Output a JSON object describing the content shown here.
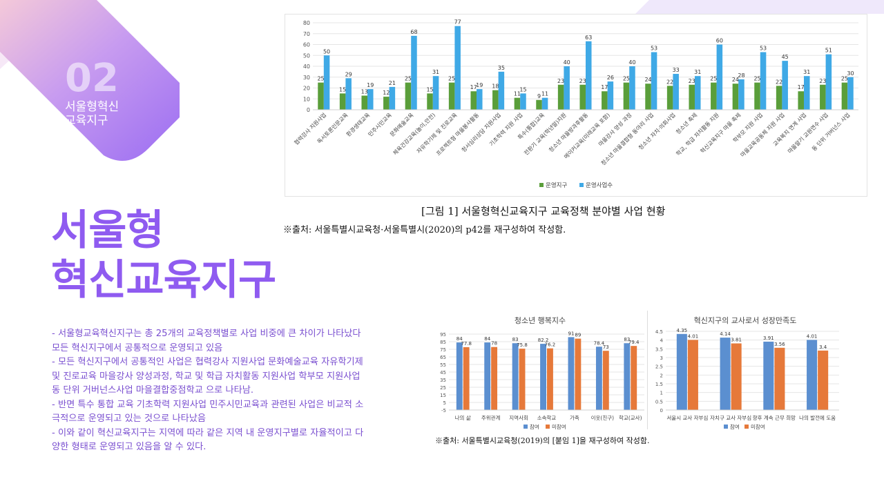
{
  "badge": {
    "number": "02",
    "line1": "서울형혁신",
    "line2": "교육지구"
  },
  "title": {
    "line1": "서울형",
    "line2": "혁신교육지구"
  },
  "body": [
    "- 서울형교육혁신지구는 총 25개의 교육정책별로 사업 비중에 큰 차이가 나타났다",
    "모든 혁신지구에서 공통적으로 운영되고 있음",
    "- 모든 혁신지구에서 공통적인 사업은 협력강사 지원사업 문화예술교육 자유학기제",
    "및 진로교육 마을강사 양성과정, 학교 및 학급 자치활동 지원사업 학부모 지원사업",
    "동 단위 거버넌스사업 마을결합중점학교 으로 나타남.",
    "- 반면 특수 통합 교육 기초학력 지원사업 민주시민교육과 관련된 사업은 비교적 소",
    "극적으로 운영되고 있는 것으로 나타났음",
    "- 이와 같이 혁신교육지구는 지역에 따라 같은 지역 내 운영지구별로 자율적이고 다",
    "양한 형태로 운영되고 있음을 알 수 있다."
  ],
  "caption_top": {
    "figure": "[그림 1] 서울형혁신교육지구 교육정책 분야별 사업 현황",
    "source": "※출처: 서울특별시교육청·서울특별시(2020)의 p42를 재구성하여 작성함."
  },
  "caption_bottom": {
    "source": "※출처: 서울특별시교육청(2019)의 [붙임 1]을 재구성하여 작성함."
  },
  "colors": {
    "green": "#5a9e3a",
    "blue": "#3fa9e6",
    "bar_blue": "#5b8fd0",
    "bar_orange": "#e6793a",
    "purple": "#8f5bf0"
  },
  "chart_data": [
    {
      "type": "bar",
      "categories": [
        "협력강사 지원사업",
        "독서토론인문교육",
        "환경생태교육",
        "민주시민교육",
        "문화예술교육",
        "체육건강교육(놀이,안전)",
        "자유학기제 및 진로교육",
        "프로젝트형 마을봉사활동",
        "청서심리상담 지원사업",
        "기초학력 지원 사업",
        "특수(통합)교육",
        "전환기 교육(학년말)지원",
        "청소년 마을방과후활동",
        "메이커교육(미래교육 포함)",
        "마을강사 양성 과정",
        "청소년 마을결합형 동아리 사업",
        "청소년 자치·의회사업",
        "청소년 축제",
        "학교, 학급 자치활동 지원",
        "혁신교육지구 마을 축제",
        "학부모 지원 사업",
        "마을교육공동체 지원 사업",
        "교육복지 연계 사업",
        "마을알기 교원연수 사업",
        "동 단위 거버넌스 사업"
      ],
      "series": [
        {
          "name": "운영지구",
          "values": [
            25,
            15,
            13,
            12,
            25,
            15,
            25,
            17,
            18,
            11,
            9,
            23,
            23,
            17,
            25,
            24,
            22,
            23,
            25,
            24,
            25,
            22,
            17,
            23,
            25
          ]
        },
        {
          "name": "운영사업수",
          "values": [
            50,
            29,
            19,
            21,
            68,
            31,
            77,
            19,
            35,
            15,
            11,
            40,
            63,
            26,
            40,
            53,
            33,
            31,
            60,
            28,
            53,
            45,
            31,
            51,
            30
          ]
        }
      ],
      "ylim": [
        0,
        80
      ],
      "yticks": [
        0,
        10,
        20,
        30,
        40,
        50,
        60,
        70,
        80
      ],
      "legend": "bottom"
    },
    {
      "type": "bar",
      "title": "청소년 행복지수",
      "categories": [
        "나의 삶",
        "주위관계",
        "지역사회",
        "소속학교",
        "가족",
        "이웃(친구)",
        "학교(교사)"
      ],
      "series": [
        {
          "name": "참여",
          "values": [
            84,
            84,
            83,
            82.2,
            91,
            78.4,
            83
          ]
        },
        {
          "name": "미참여",
          "values": [
            77.8,
            78,
            75.8,
            76.2,
            89,
            73,
            79.4
          ]
        }
      ],
      "ylim": [
        -5,
        95
      ],
      "yticks": [
        -5,
        5,
        15,
        25,
        35,
        45,
        55,
        65,
        75,
        85,
        95
      ],
      "legend": "bottom"
    },
    {
      "type": "bar",
      "title": "혁신지구의 교사로서 성장만족도",
      "categories": [
        "서울시 교사 자부심",
        "자치구 교사 자부심",
        "향후 계속 근무 희망",
        "나의 발전에 도움"
      ],
      "series": [
        {
          "name": "참여",
          "values": [
            4.35,
            4.14,
            3.91,
            4.01
          ]
        },
        {
          "name": "미참여",
          "values": [
            4.01,
            3.81,
            3.56,
            3.4
          ]
        }
      ],
      "ylim": [
        0,
        4.5
      ],
      "yticks": [
        0,
        0.5,
        1,
        1.5,
        2,
        2.5,
        3,
        3.5,
        4,
        4.5
      ],
      "legend": "bottom"
    }
  ]
}
